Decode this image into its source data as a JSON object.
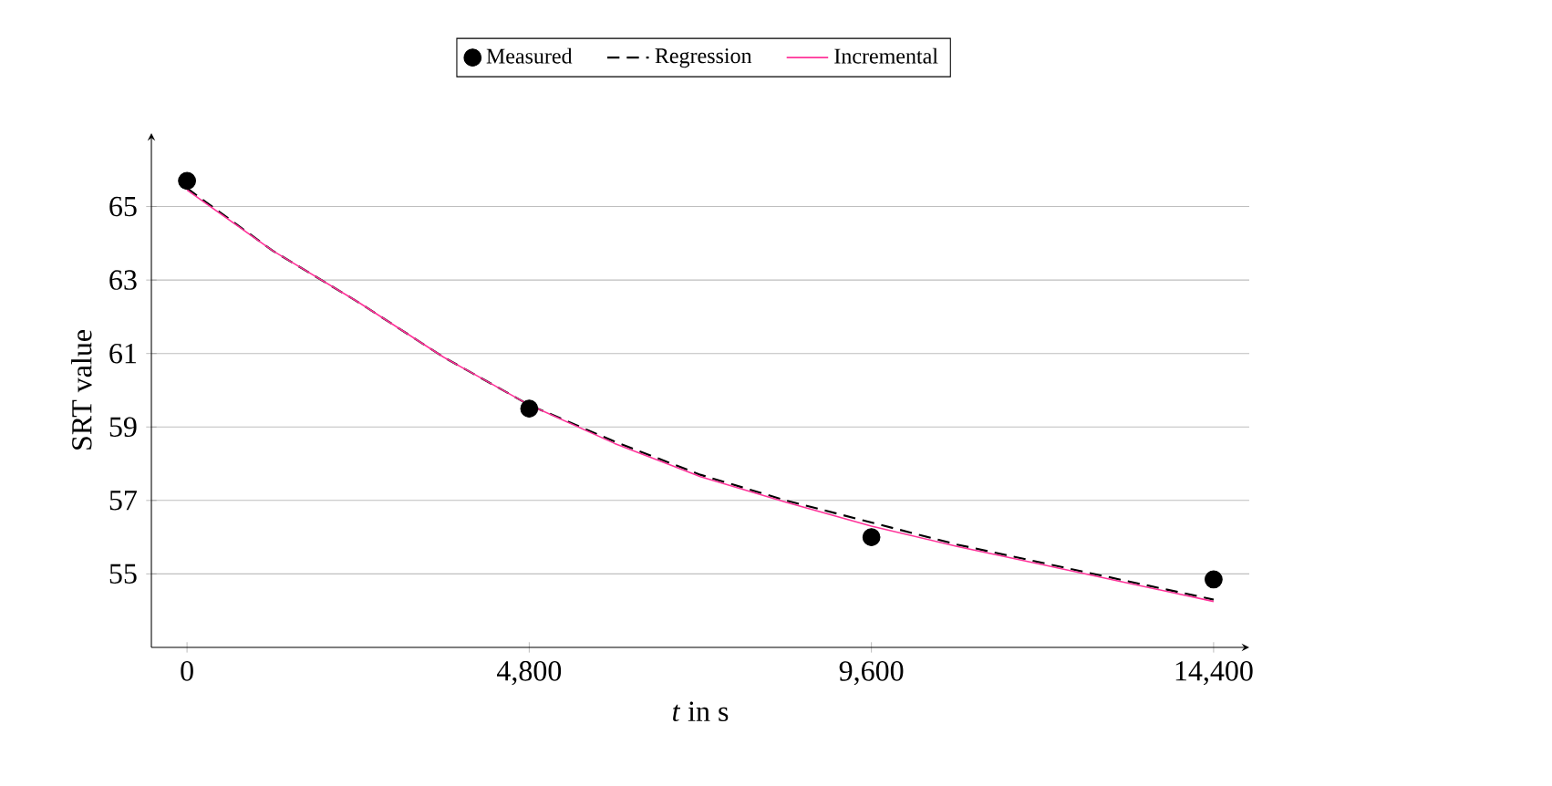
{
  "chart_data": {
    "type": "line",
    "xlabel": "*t* in s",
    "ylabel": "SRT value",
    "xlim": [
      -500,
      14900
    ],
    "ylim": [
      53,
      67
    ],
    "xticks": [
      0,
      {
        "value": 4800,
        "label": "4,800"
      },
      {
        "value": 9600,
        "label": "9,600"
      },
      {
        "value": 14400,
        "label": "14,400"
      }
    ],
    "yticks": [
      55,
      57,
      59,
      61,
      63,
      65
    ],
    "grid": "y",
    "legend": "top",
    "series": [
      {
        "name": "Measured",
        "type": "scatter",
        "marker": "circle",
        "color": "#000000",
        "x": [
          0,
          4800,
          9600,
          14400
        ],
        "values": [
          65.7,
          59.5,
          56.0,
          54.85
        ]
      },
      {
        "name": "Regression",
        "type": "line",
        "line_style": "dashed",
        "color": "#000000",
        "x": [
          0,
          1200,
          2400,
          3600,
          4800,
          6000,
          7200,
          8400,
          9600,
          10800,
          12000,
          13200,
          14400
        ],
        "values": [
          65.5,
          63.8,
          62.4,
          60.9,
          59.6,
          58.6,
          57.7,
          57.0,
          56.4,
          55.8,
          55.3,
          54.8,
          54.3
        ]
      },
      {
        "name": "Incremental",
        "type": "line",
        "line_style": "solid",
        "color": "#ff3399",
        "x": [
          0,
          1200,
          2400,
          3600,
          4800,
          6000,
          7200,
          8400,
          9600,
          10800,
          12000,
          13200,
          14400
        ],
        "values": [
          65.45,
          63.8,
          62.4,
          60.9,
          59.6,
          58.55,
          57.65,
          56.95,
          56.3,
          55.75,
          55.25,
          54.75,
          54.25
        ]
      }
    ]
  }
}
